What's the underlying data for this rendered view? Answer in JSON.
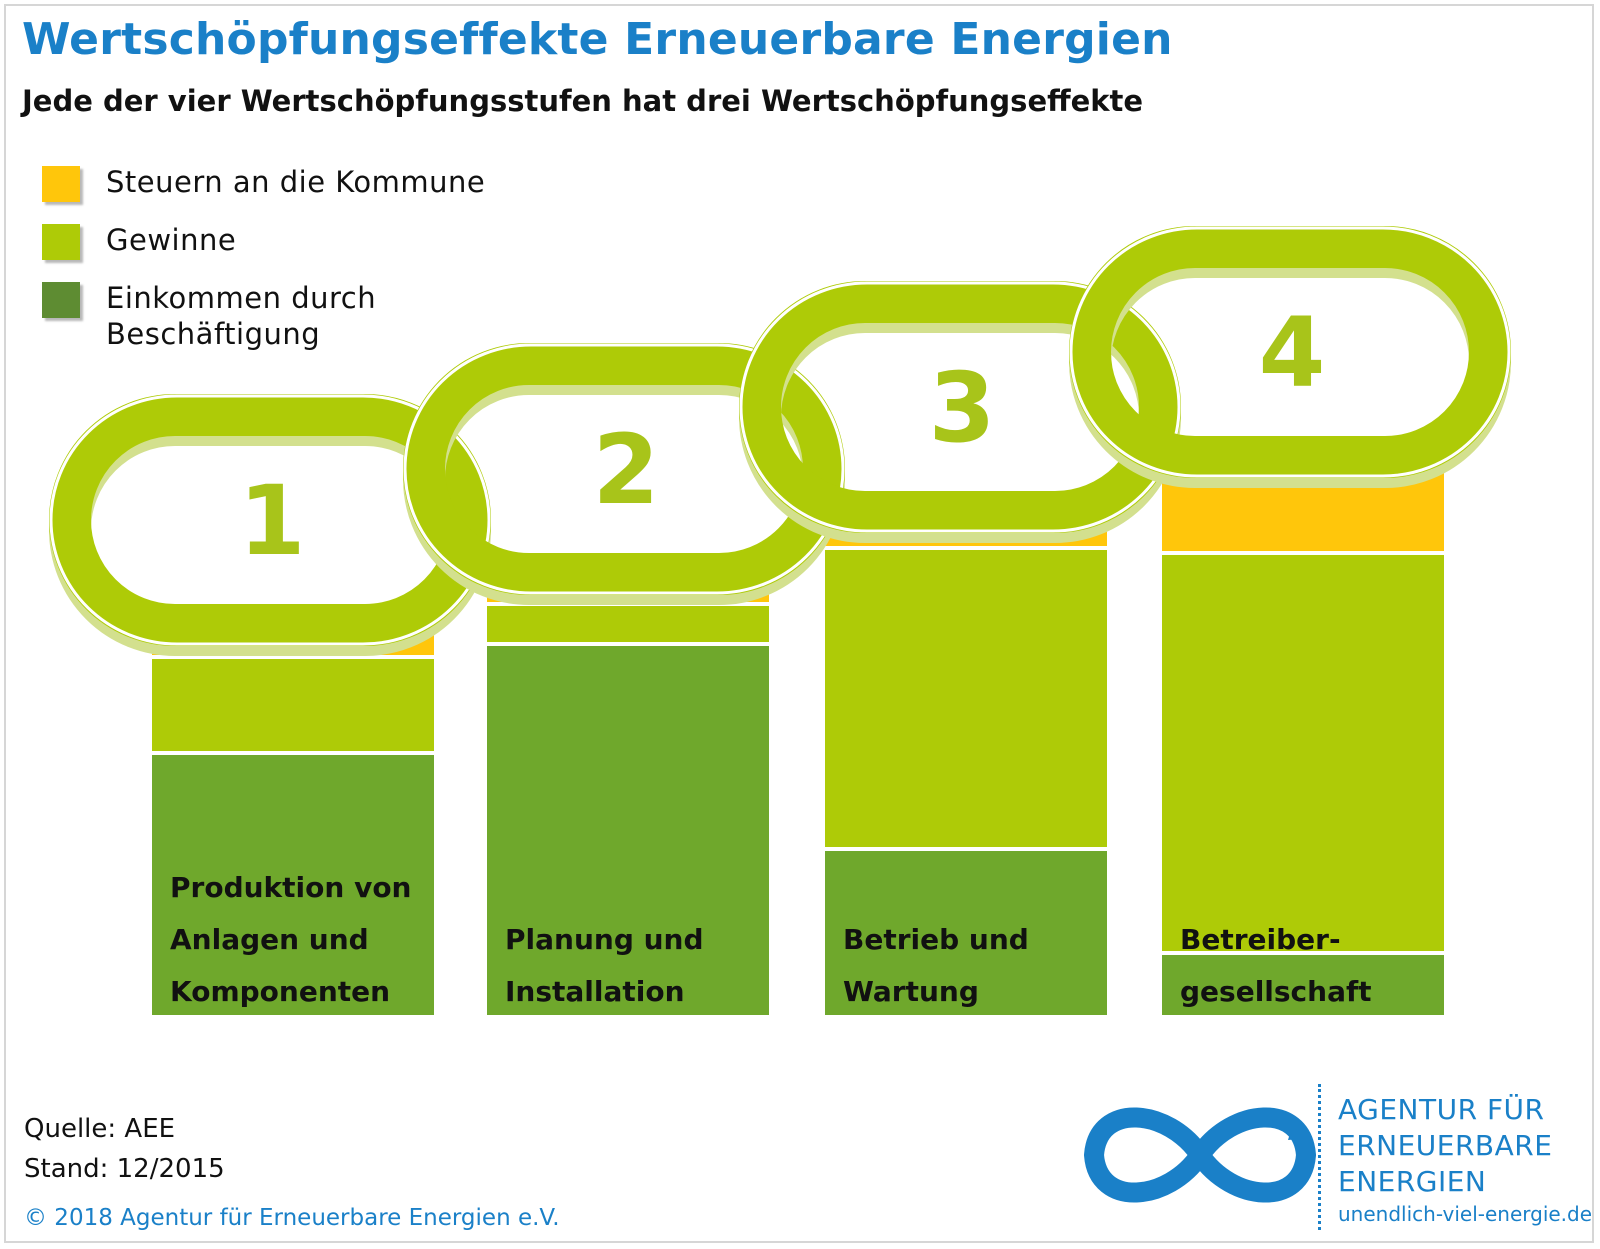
{
  "title": "Wertschöpfungseffekte Erneuerbare Energien",
  "subtitle": "Jede der vier Wertschöpfungsstufen hat drei Wertschöpfungseffekte",
  "colors": {
    "steuern": "#ffc60b",
    "gewinne": "#aecb07",
    "einkommen": "#6fa82c",
    "ring": "#aecb07",
    "ring_shadow": "#d3e08e",
    "accent": "#1a80c8"
  },
  "legend": [
    {
      "label": "Steuern an die Kommune",
      "color": "#ffc60b"
    },
    {
      "label": "Gewinne",
      "color": "#aecb07"
    },
    {
      "label": "Einkommen durch\nBeschäftigung",
      "color": "#5e8c32"
    }
  ],
  "chart_data": {
    "type": "bar",
    "stacked": true,
    "categories": [
      "Produktion von Anlagen und Komponenten",
      "Planung und Installation",
      "Betrieb und Wartung",
      "Betreiber-gesellschaft"
    ],
    "category_lines": [
      [
        "Produktion von",
        "Anlagen und",
        "Komponenten"
      ],
      [
        "Planung und",
        "Installation"
      ],
      [
        "Betrieb und",
        "Wartung"
      ],
      [
        "Betreiber-",
        "gesellschaft"
      ]
    ],
    "ring_numbers": [
      "1",
      "2",
      "3",
      "4"
    ],
    "series": [
      {
        "name": "Einkommen durch Beschäftigung",
        "values": [
          262,
          371,
          166,
          62
        ]
      },
      {
        "name": "Gewinne",
        "values": [
          96,
          40,
          301,
          400
        ]
      },
      {
        "name": "Steuern an die Kommune",
        "values": [
          24,
          22,
          28,
          88
        ]
      }
    ],
    "ylim": [
      0,
      560
    ]
  },
  "footer": {
    "source": "Quelle: AEE",
    "date": "Stand: 12/2015",
    "copyright": "© 2018 Agentur für Erneuerbare Energien e.V."
  },
  "logo": {
    "lines": [
      "AGENTUR FÜR",
      "ERNEUERBARE",
      "ENERGIEN"
    ],
    "url": "unendlich-viel-energie.de",
    "icon": "infinity-icon"
  }
}
